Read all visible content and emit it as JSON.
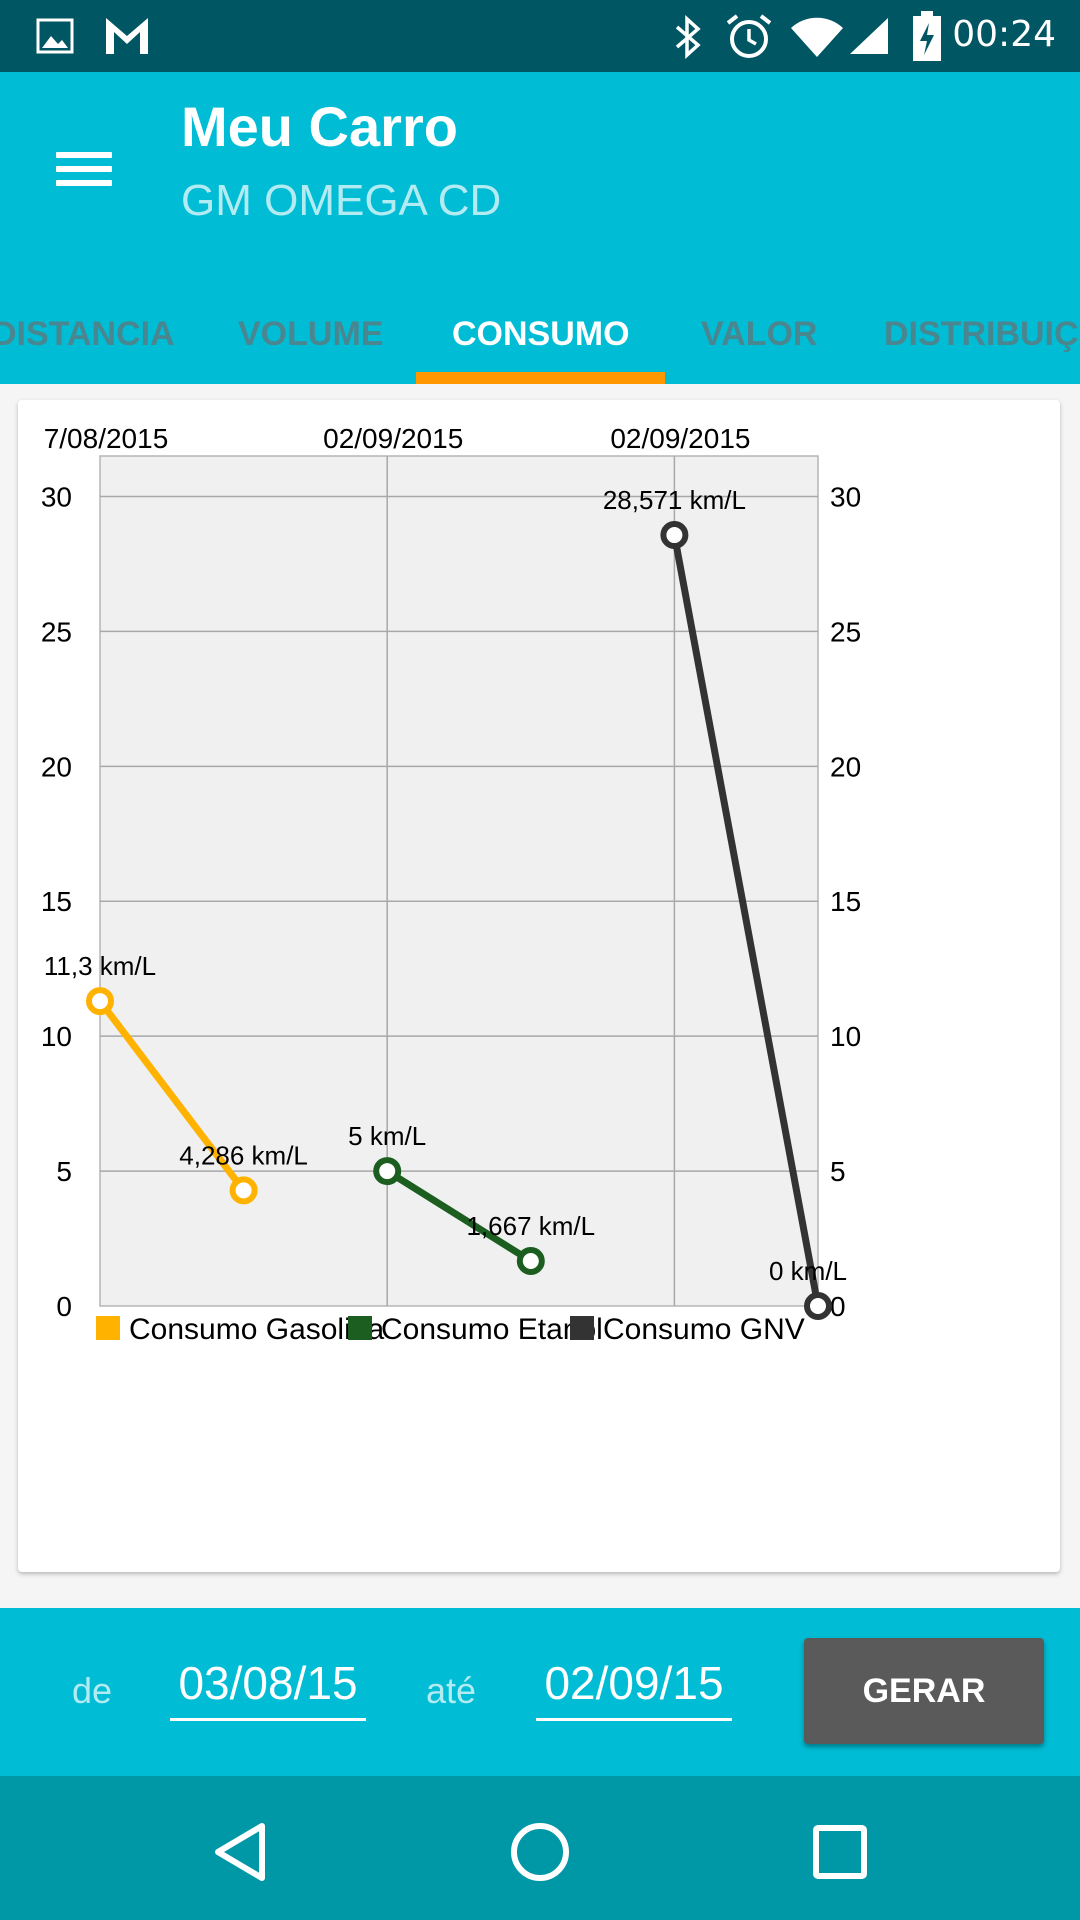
{
  "status_bar": {
    "time": "00:24",
    "icons": [
      "image-icon",
      "gmail-icon",
      "bluetooth-icon",
      "alarm-icon",
      "wifi-icon",
      "signal-icon",
      "battery-charging-icon"
    ]
  },
  "app_bar": {
    "title": "Meu Carro",
    "subtitle": "GM OMEGA CD",
    "menu_icon": "hamburger-menu-icon"
  },
  "tabs": [
    {
      "label": "DISTANCIA",
      "active": false
    },
    {
      "label": "VOLUME",
      "active": false
    },
    {
      "label": "CONSUMO",
      "active": true
    },
    {
      "label": "VALOR",
      "active": false
    },
    {
      "label": "DISTRIBUIÇÃO",
      "active": false
    }
  ],
  "colors": {
    "primary": "#00bcd4",
    "primary_dark": "#005662",
    "nav_bar": "#0097a7",
    "accent": "#ff9800",
    "gasolina": "#ffb300",
    "etanol": "#1b5e20",
    "gnv": "#333333",
    "button": "#5a5a5a"
  },
  "chart_data": {
    "type": "line",
    "x_ticks": [
      "7/08/2015",
      "02/09/2015",
      "02/09/2015"
    ],
    "y_ticks": [
      0,
      5,
      10,
      15,
      20,
      25,
      30
    ],
    "ylim": [
      0,
      30
    ],
    "y_axis": "both",
    "grid": true,
    "legend_position": "bottom",
    "series": [
      {
        "name": "Consumo Gasolina",
        "color": "#ffb300",
        "points": [
          {
            "x": 0,
            "y": 11.3,
            "label": "11,3 km/L"
          },
          {
            "x": 0.5,
            "y": 4.286,
            "label": "4,286 km/L"
          }
        ]
      },
      {
        "name": "Consumo Etanol",
        "color": "#1b5e20",
        "points": [
          {
            "x": 1,
            "y": 5,
            "label": "5 km/L"
          },
          {
            "x": 1.5,
            "y": 1.667,
            "label": "1,667 km/L"
          }
        ]
      },
      {
        "name": "Consumo GNV",
        "color": "#333333",
        "points": [
          {
            "x": 2,
            "y": 28.571,
            "label": "28,571 km/L"
          },
          {
            "x": 2.5,
            "y": 0,
            "label": "0 km/L"
          }
        ]
      }
    ]
  },
  "filter": {
    "from_label": "de",
    "from_value": "03/08/15",
    "to_label": "até",
    "to_value": "02/09/15",
    "generate_label": "GERAR"
  },
  "nav_bar": {
    "icons": [
      "back-icon",
      "home-icon",
      "recents-icon"
    ]
  }
}
